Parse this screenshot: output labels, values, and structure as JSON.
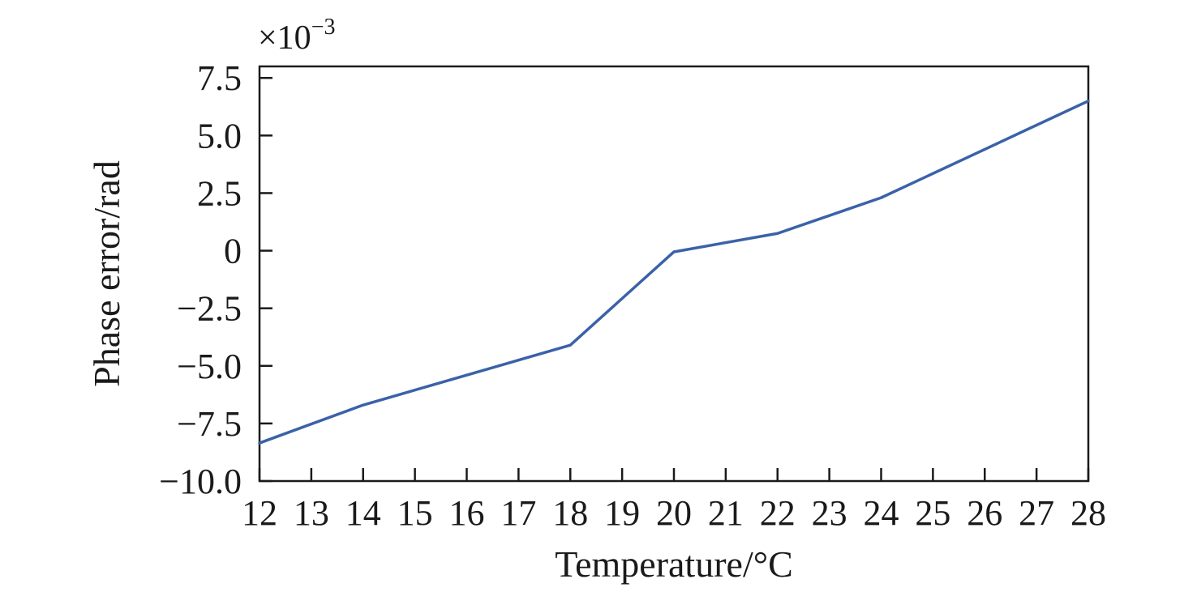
{
  "chart_data": {
    "type": "line",
    "xlabel": "Temperature/°C",
    "ylabel": "Phase error/rad",
    "y_multiplier": {
      "base": "×10",
      "exponent": "−3"
    },
    "xlim": [
      12,
      28
    ],
    "ylim": [
      -10.0,
      8.0
    ],
    "x_ticks": [
      12,
      13,
      14,
      15,
      16,
      17,
      18,
      19,
      20,
      21,
      22,
      23,
      24,
      25,
      26,
      27,
      28
    ],
    "y_ticks": [
      {
        "value": 7.5,
        "label": "7.5"
      },
      {
        "value": 5.0,
        "label": "5.0"
      },
      {
        "value": 2.5,
        "label": "2.5"
      },
      {
        "value": 0,
        "label": "0"
      },
      {
        "value": -2.5,
        "label": "−2.5"
      },
      {
        "value": -5.0,
        "label": "−5.0"
      },
      {
        "value": -7.5,
        "label": "−7.5"
      },
      {
        "value": -10.0,
        "label": "−10.0"
      }
    ],
    "grid": false,
    "series": [
      {
        "color": "#3a62a8",
        "x": [
          12,
          14,
          16,
          18,
          20,
          22,
          24,
          26,
          28
        ],
        "y": [
          -8.35,
          -6.7,
          -5.4,
          -4.1,
          -0.05,
          0.75,
          2.3,
          4.4,
          6.5
        ]
      }
    ]
  }
}
